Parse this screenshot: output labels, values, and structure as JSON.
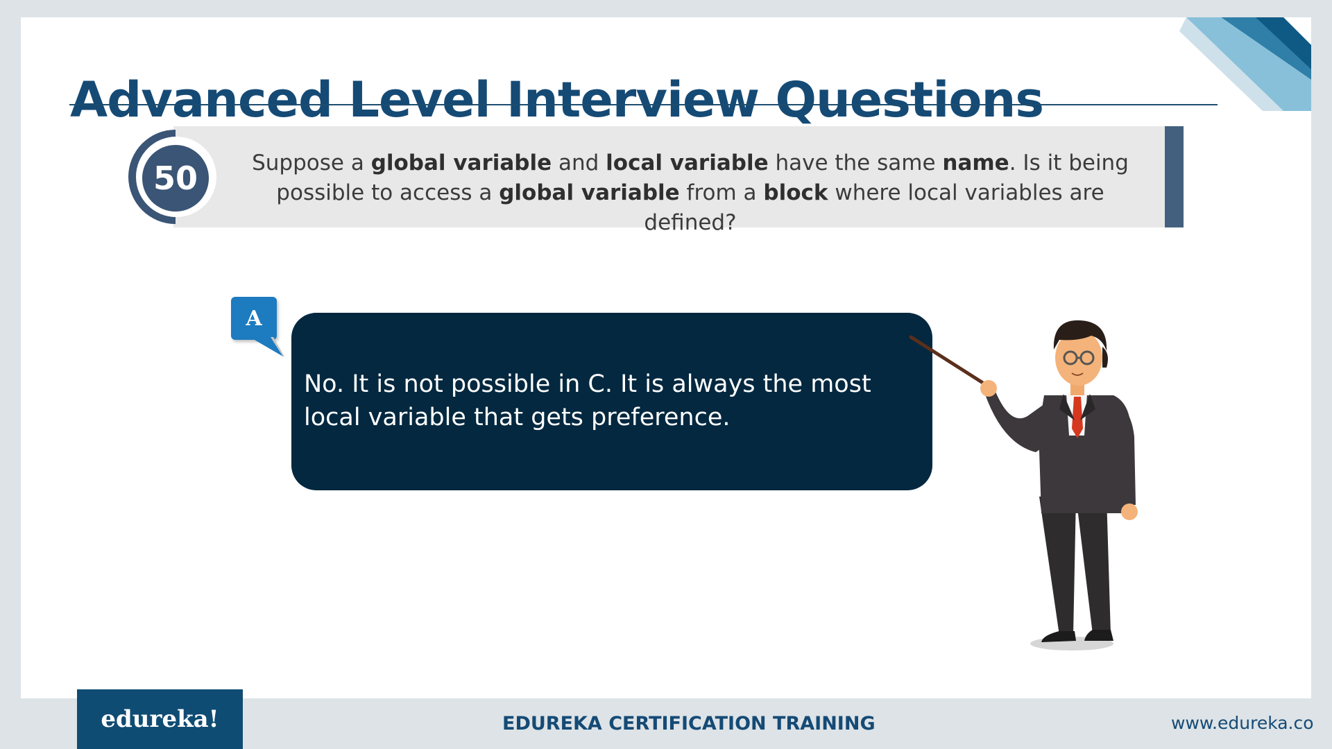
{
  "slide": {
    "title": "Advanced Level Interview Questions",
    "question_number": "50",
    "question_parts": [
      {
        "text": "Suppose a ",
        "bold": false
      },
      {
        "text": "global variable",
        "bold": true
      },
      {
        "text": " and ",
        "bold": false
      },
      {
        "text": "local variable",
        "bold": true
      },
      {
        "text": " have the same ",
        "bold": false
      },
      {
        "text": "name",
        "bold": true
      },
      {
        "text": ". Is it being possible to access a ",
        "bold": false
      },
      {
        "text": "global variable",
        "bold": true
      },
      {
        "text": " from a ",
        "bold": false
      },
      {
        "text": "block",
        "bold": true
      },
      {
        "text": " where local variables are defined?",
        "bold": false
      }
    ],
    "answer_badge": "A",
    "answer_text": "No. It is not possible in C. It is always the most local variable that gets preference."
  },
  "footer": {
    "logo": "edureka!",
    "center": "EDUREKA CERTIFICATION TRAINING",
    "url": "www.edureka.co"
  },
  "colors": {
    "title": "#154a75",
    "answer_bg": "#03283f",
    "badge": "#1d7bbf",
    "question_bar": "#e8e8e8",
    "accent": "#44607f"
  },
  "icons": {
    "presenter": "presenter-with-pointer-illustration",
    "corner": "corner-stripes-decoration"
  }
}
